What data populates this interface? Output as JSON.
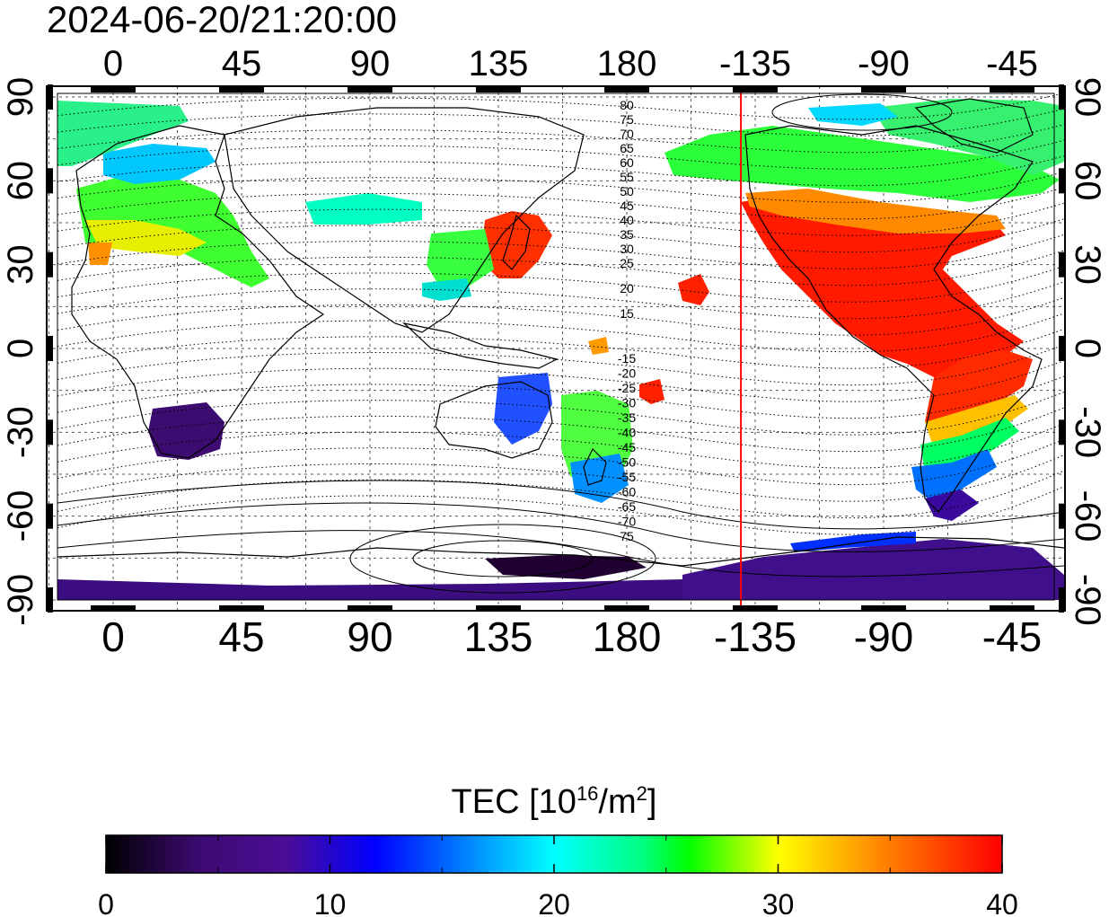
{
  "timestamp": "2024-06-20/21:20:00",
  "top_lon_ticks": [
    "0",
    "45",
    "90",
    "135",
    "180",
    "-135",
    "-90",
    "-45"
  ],
  "bottom_lon_ticks": [
    "0",
    "45",
    "90",
    "135",
    "180",
    "-135",
    "-90",
    "-45"
  ],
  "left_lat_ticks": [
    "90",
    "60",
    "30",
    "0",
    "-30",
    "-60",
    "-90"
  ],
  "right_lat_ticks": [
    "90",
    "60",
    "30",
    "0",
    "-30",
    "-60",
    "-90"
  ],
  "contour_labels_north": [
    "80",
    "75",
    "70",
    "65",
    "60",
    "55",
    "50",
    "45",
    "40",
    "35",
    "30",
    "25",
    "20",
    "15"
  ],
  "contour_labels_south": [
    "-15",
    "-20",
    "-25",
    "-30",
    "-35",
    "-40",
    "-45",
    "-50",
    "-55",
    "-60",
    "-65",
    "-70",
    "75"
  ],
  "terminator_longitude": -140,
  "colorbar": {
    "title_prefix": "TEC  [10",
    "title_sup1": "16",
    "title_mid": "/m",
    "title_sup2": "2",
    "title_suffix": "]",
    "ticks": [
      "0",
      "10",
      "20",
      "30",
      "40"
    ],
    "range": [
      0,
      40
    ],
    "colors": [
      "#000000",
      "#3a0a6e",
      "#4b0d96",
      "#0000ff",
      "#0080ff",
      "#00ffff",
      "#00ff80",
      "#00ff00",
      "#ffff00",
      "#ff8000",
      "#ff0000"
    ]
  },
  "colors": {
    "terminator": "#ff0000",
    "frame": "#000000",
    "grid": "#555555"
  }
}
